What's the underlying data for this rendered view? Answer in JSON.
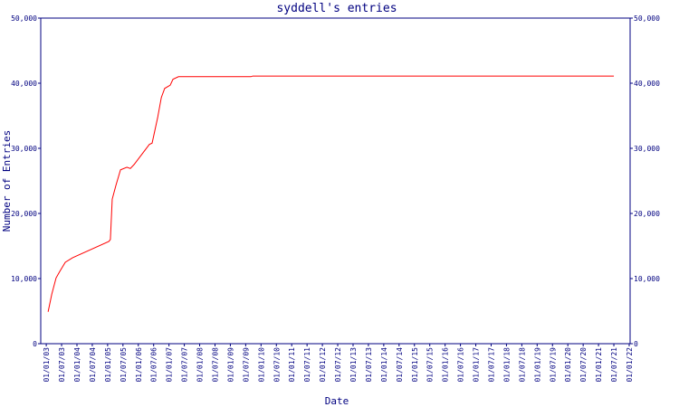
{
  "chart_data": {
    "type": "line",
    "title": "syddell's entries",
    "xlabel": "Date",
    "ylabel": "Number of Entries",
    "x": [
      2003.06,
      2003.18,
      2003.32,
      2003.44,
      2003.62,
      2003.86,
      2005.04,
      2005.09,
      2005.15,
      2005.27,
      2005.42,
      2005.63,
      2005.74,
      2005.86,
      2006.36,
      2006.45,
      2006.63,
      2006.75,
      2006.86,
      2007.04,
      2007.13,
      2007.31,
      2009.67,
      2009.73,
      2021.5
    ],
    "series": [
      {
        "name": "entries",
        "color": "#ff0000",
        "values": [
          4900,
          7600,
          10100,
          11100,
          12500,
          13200,
          15700,
          16000,
          22200,
          24300,
          26700,
          27100,
          26900,
          27500,
          30600,
          30800,
          34700,
          37800,
          39200,
          39700,
          40600,
          41000,
          41000,
          41100,
          41100
        ]
      }
    ],
    "xlim": [
      2002.82,
      2022.03
    ],
    "xticks": [
      {
        "value": 2003,
        "label": "01/01/03"
      },
      {
        "value": 2003.5,
        "label": "01/07/03"
      },
      {
        "value": 2004,
        "label": "01/01/04"
      },
      {
        "value": 2004.5,
        "label": "01/07/04"
      },
      {
        "value": 2005,
        "label": "01/01/05"
      },
      {
        "value": 2005.5,
        "label": "01/07/05"
      },
      {
        "value": 2006,
        "label": "01/01/06"
      },
      {
        "value": 2006.5,
        "label": "01/07/06"
      },
      {
        "value": 2007,
        "label": "01/01/07"
      },
      {
        "value": 2007.5,
        "label": "01/07/07"
      },
      {
        "value": 2008,
        "label": "01/01/08"
      },
      {
        "value": 2008.5,
        "label": "01/07/08"
      },
      {
        "value": 2009,
        "label": "01/01/09"
      },
      {
        "value": 2009.5,
        "label": "01/07/09"
      },
      {
        "value": 2010,
        "label": "01/01/10"
      },
      {
        "value": 2010.5,
        "label": "01/07/10"
      },
      {
        "value": 2011,
        "label": "01/01/11"
      },
      {
        "value": 2011.5,
        "label": "01/07/11"
      },
      {
        "value": 2012,
        "label": "01/01/12"
      },
      {
        "value": 2012.5,
        "label": "01/07/12"
      },
      {
        "value": 2013,
        "label": "01/01/13"
      },
      {
        "value": 2013.5,
        "label": "01/07/13"
      },
      {
        "value": 2014,
        "label": "01/01/14"
      },
      {
        "value": 2014.5,
        "label": "01/07/14"
      },
      {
        "value": 2015,
        "label": "01/01/15"
      },
      {
        "value": 2015.5,
        "label": "01/07/15"
      },
      {
        "value": 2016,
        "label": "01/01/16"
      },
      {
        "value": 2016.5,
        "label": "01/07/16"
      },
      {
        "value": 2017,
        "label": "01/01/17"
      },
      {
        "value": 2017.5,
        "label": "01/07/17"
      },
      {
        "value": 2018,
        "label": "01/01/18"
      },
      {
        "value": 2018.5,
        "label": "01/07/18"
      },
      {
        "value": 2019,
        "label": "01/01/19"
      },
      {
        "value": 2019.5,
        "label": "01/07/19"
      },
      {
        "value": 2020,
        "label": "01/01/20"
      },
      {
        "value": 2020.5,
        "label": "01/07/20"
      },
      {
        "value": 2021,
        "label": "01/01/21"
      },
      {
        "value": 2021.5,
        "label": "01/07/21"
      },
      {
        "value": 2022,
        "label": "01/01/22"
      }
    ],
    "ylim": [
      0,
      50000
    ],
    "yticks": [
      0,
      {
        "value": 10000,
        "label": "10,000"
      },
      {
        "value": 20000,
        "label": "20,000"
      },
      {
        "value": 30000,
        "label": "30,000"
      },
      {
        "value": 40000,
        "label": "40,000"
      },
      {
        "value": 50000,
        "label": "50,000"
      }
    ],
    "y2lim": [
      0,
      50000
    ],
    "y2ticks": [
      0,
      {
        "value": 10000,
        "label": "10,000"
      },
      {
        "value": 20000,
        "label": "20,000"
      },
      {
        "value": 30000,
        "label": "30,000"
      },
      {
        "value": 40000,
        "label": "40,000"
      },
      {
        "value": 50000,
        "label": "50,000"
      }
    ],
    "axis_color": "#000080"
  }
}
